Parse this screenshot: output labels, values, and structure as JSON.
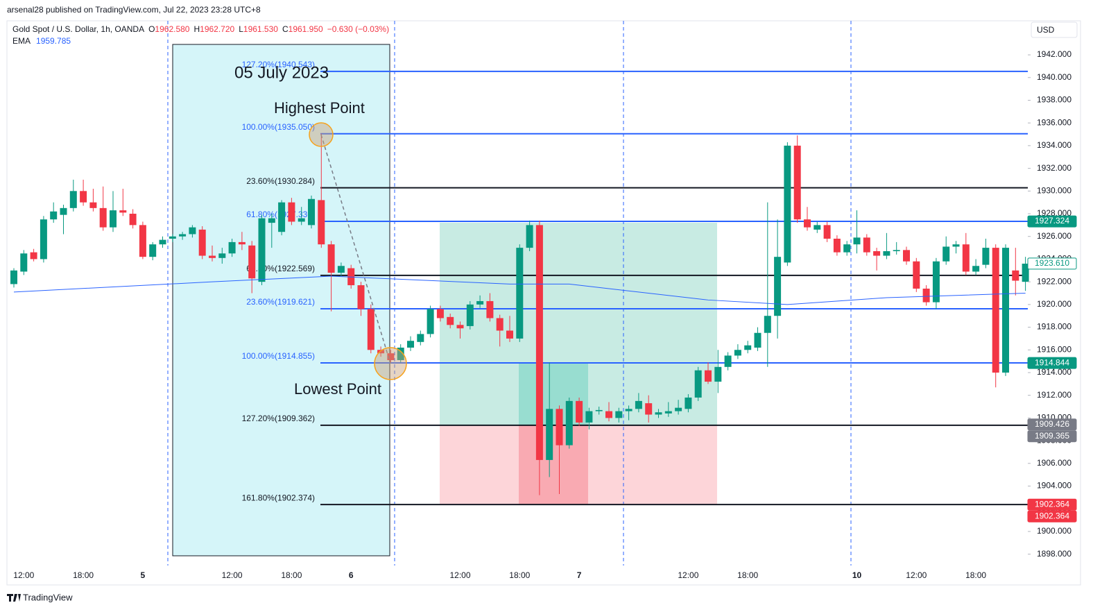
{
  "chart_data": {
    "type": "candlestick",
    "published": "arsenal28 published on TradingView.com, Jul 22, 2023 23:28 UTC+8",
    "symbol": "Gold Spot / U.S. Dollar, 1h, OANDA",
    "ohlc_legend": [
      {
        "label": "O",
        "value": "1962.580"
      },
      {
        "label": "H",
        "value": "1962.720"
      },
      {
        "label": "L",
        "value": "1961.530"
      },
      {
        "label": "C",
        "value": "1961.950"
      }
    ],
    "change": "−0.630 (−0.03%)",
    "ema_legend": {
      "label": "EMA",
      "value": "1959.785"
    },
    "currency": "USD",
    "brand": "TradingView",
    "annotations": [
      "05 July 2023",
      "Highest Point",
      "Lowest Point"
    ],
    "up_color": "#089981",
    "down_color": "#f23645",
    "categories": [
      null,
      "12:00",
      null,
      null,
      null,
      null,
      null,
      "18:00",
      null,
      null,
      null,
      null,
      null,
      "5",
      null,
      null,
      null,
      null,
      null,
      null,
      null,
      null,
      "12:00",
      null,
      null,
      null,
      null,
      null,
      "18:00",
      null,
      null,
      null,
      null,
      null,
      "6",
      null,
      null,
      null,
      null,
      null,
      null,
      null,
      null,
      null,
      null,
      "12:00",
      null,
      null,
      null,
      null,
      null,
      "18:00",
      null,
      null,
      null,
      null,
      null,
      "7",
      null,
      null,
      null,
      null,
      null,
      null,
      null,
      null,
      null,
      null,
      "12:00",
      null,
      null,
      null,
      null,
      null,
      "18:00",
      null,
      null,
      null,
      null,
      null,
      null,
      null,
      null,
      null,
      null,
      "10",
      null,
      null,
      null,
      null,
      null,
      "12:00",
      null,
      null,
      null,
      null,
      null,
      "18:00",
      null,
      null,
      null,
      null,
      null
    ],
    "open": [
      1921.8,
      1922.9,
      1924.6,
      1924.0,
      1927.5,
      1927.9,
      1928.5,
      1930.0,
      1929.0,
      1928.5,
      1926.8,
      1928.3,
      1928.0,
      1927.0,
      1924.2,
      1925.3,
      1925.8,
      1926.0,
      1926.2,
      1926.6,
      1924.3,
      1924.1,
      1924.5,
      1925.5,
      1925.2,
      1922.0,
      1927.2,
      1926.4,
      1929.0,
      1927.3,
      1927.0,
      1929.2,
      1925.3,
      1922.8,
      1923.2,
      1921.7,
      1919.6,
      1916.0,
      1915.7,
      1915.1,
      1916.2,
      1916.7,
      1917.4,
      1919.6,
      1918.9,
      1918.2,
      1918.1,
      1920.0,
      1920.3,
      1918.8,
      1917.7,
      1917.0,
      1925.0,
      1927.0,
      1906.3,
      1910.8,
      1907.6,
      1911.5,
      1909.6,
      1910.6,
      1910.6,
      1910.0,
      1910.6,
      1910.8,
      1911.3,
      1910.3,
      1910.4,
      1910.6,
      1910.8,
      1911.8,
      1914.2,
      1913.2,
      1914.5,
      1915.5,
      1916.0,
      1916.2,
      1917.5,
      1919.0,
      1923.7,
      1934.0,
      1927.5,
      1926.6,
      1927.0,
      1925.8,
      1924.6,
      1925.3,
      1925.9,
      1924.7,
      1924.3,
      1924.7,
      1924.8,
      1923.8,
      1921.4,
      1920.2,
      1923.8,
      1925.1,
      1925.3,
      1922.9,
      1923.5,
      1925.0,
      1914.0,
      1923.0,
      1922.0
    ],
    "high": [
      1923.2,
      1924.8,
      1924.9,
      1927.8,
      1929.0,
      1928.8,
      1931.0,
      1931.0,
      1930.2,
      1930.4,
      1930.0,
      1930.2,
      1928.4,
      1927.3,
      1925.5,
      1926.0,
      1926.2,
      1926.4,
      1927.0,
      1926.9,
      1925.2,
      1925.0,
      1925.8,
      1926.4,
      1925.6,
      1927.9,
      1928.0,
      1929.2,
      1929.4,
      1928.6,
      1929.6,
      1935.05,
      1925.6,
      1923.7,
      1923.5,
      1922.0,
      1920.0,
      1916.3,
      1916.0,
      1916.5,
      1917.2,
      1917.7,
      1919.9,
      1919.9,
      1919.2,
      1918.5,
      1920.3,
      1920.8,
      1921.0,
      1919.1,
      1919.0,
      1925.3,
      1927.4,
      1927.4,
      1914.9,
      1911.1,
      1911.8,
      1911.8,
      1910.9,
      1911.0,
      1911.4,
      1910.9,
      1911.1,
      1912.2,
      1912.0,
      1910.8,
      1911.4,
      1911.6,
      1912.1,
      1914.5,
      1914.9,
      1916.0,
      1915.8,
      1916.5,
      1916.8,
      1918.0,
      1929.0,
      1927.5,
      1934.3,
      1934.9,
      1928.6,
      1927.3,
      1927.3,
      1926.1,
      1925.6,
      1928.3,
      1926.2,
      1925.0,
      1926.3,
      1925.5,
      1925.1,
      1924.1,
      1921.7,
      1924.1,
      1926.0,
      1925.6,
      1926.3,
      1924.0,
      1925.8,
      1925.3,
      1925.3,
      1925.0,
      1924.2
    ],
    "low": [
      1921.5,
      1922.6,
      1923.8,
      1923.7,
      1927.2,
      1926.2,
      1928.2,
      1928.7,
      1928.2,
      1926.5,
      1926.4,
      1927.8,
      1926.7,
      1924.0,
      1923.9,
      1925.0,
      1925.5,
      1925.7,
      1925.9,
      1924.0,
      1923.8,
      1923.6,
      1924.2,
      1924.8,
      1921.0,
      1921.7,
      1925.0,
      1926.1,
      1927.0,
      1927.0,
      1926.7,
      1925.0,
      1919.4,
      1922.5,
      1921.4,
      1919.0,
      1915.7,
      1915.4,
      1914.9,
      1914.9,
      1915.9,
      1916.4,
      1917.1,
      1918.5,
      1917.9,
      1917.0,
      1917.8,
      1919.7,
      1918.5,
      1916.3,
      1916.7,
      1916.7,
      1924.7,
      1903.2,
      1904.8,
      1903.3,
      1907.3,
      1909.3,
      1909.0,
      1910.3,
      1909.7,
      1909.6,
      1909.8,
      1910.5,
      1909.6,
      1910.0,
      1910.1,
      1910.3,
      1910.5,
      1911.5,
      1913.0,
      1912.2,
      1914.2,
      1915.2,
      1915.7,
      1915.9,
      1914.5,
      1917.0,
      1923.4,
      1927.2,
      1926.5,
      1926.3,
      1925.5,
      1924.3,
      1924.3,
      1924.5,
      1924.3,
      1923.0,
      1924.0,
      1924.4,
      1923.5,
      1921.1,
      1919.9,
      1919.6,
      1923.5,
      1924.5,
      1922.6,
      1922.6,
      1923.2,
      1912.7,
      1913.7,
      1920.8,
      1921.2
    ],
    "close": [
      1923.0,
      1924.5,
      1924.0,
      1927.5,
      1928.2,
      1928.5,
      1930.0,
      1929.0,
      1928.5,
      1926.8,
      1928.3,
      1928.1,
      1927.0,
      1924.2,
      1925.3,
      1925.7,
      1926.0,
      1926.2,
      1926.8,
      1924.3,
      1924.1,
      1924.5,
      1925.5,
      1925.3,
      1922.3,
      1927.6,
      1927.6,
      1929.0,
      1927.3,
      1927.6,
      1929.3,
      1925.3,
      1922.8,
      1923.4,
      1921.7,
      1919.6,
      1916.0,
      1915.7,
      1915.1,
      1916.2,
      1916.8,
      1917.4,
      1919.6,
      1918.8,
      1918.2,
      1917.9,
      1920.0,
      1920.3,
      1918.8,
      1917.7,
      1917.0,
      1925.0,
      1927.0,
      1906.3,
      1910.8,
      1907.6,
      1911.5,
      1909.6,
      1910.6,
      1910.7,
      1910.0,
      1910.6,
      1910.8,
      1911.5,
      1910.3,
      1910.5,
      1910.6,
      1910.9,
      1911.8,
      1914.2,
      1913.2,
      1914.5,
      1915.5,
      1916.0,
      1916.4,
      1917.5,
      1919.0,
      1924.2,
      1934.0,
      1927.5,
      1926.8,
      1927.0,
      1925.8,
      1924.6,
      1925.3,
      1925.9,
      1924.6,
      1924.3,
      1924.7,
      1924.8,
      1923.8,
      1921.4,
      1920.2,
      1923.8,
      1925.1,
      1925.3,
      1922.9,
      1923.4,
      1925.0,
      1914.0,
      1925.0,
      1922.1,
      1923.6
    ],
    "ema": {
      "color": "#2962ff",
      "x": [
        0,
        20,
        32,
        50,
        56,
        70,
        78,
        88,
        102
      ],
      "values": [
        1921.1,
        1922.0,
        1922.5,
        1921.8,
        1921.8,
        1920.4,
        1920.0,
        1920.6,
        1921.0
      ]
    },
    "levels": [
      {
        "label": "127.20%(1940.543)",
        "value": 1940.543,
        "color": "#2962ff"
      },
      {
        "label": "100.00%(1935.050)",
        "value": 1935.05,
        "color": "#2962ff"
      },
      {
        "label": "23.60%(1930.284)",
        "value": 1930.284,
        "color": "#131722"
      },
      {
        "label": "61.80%(1927.330)",
        "value": 1927.33,
        "color": "#2962ff"
      },
      {
        "label": "61.80%(1922.569)",
        "value": 1922.569,
        "color": "#131722"
      },
      {
        "label": "23.60%(1919.621)",
        "value": 1919.621,
        "color": "#2962ff"
      },
      {
        "label": "100.00%(1914.855)",
        "value": 1914.855,
        "color": "#2962ff"
      },
      {
        "label": "127.20%(1909.362)",
        "value": 1909.362,
        "color": "#131722"
      },
      {
        "label": "161.80%(1902.374)",
        "value": 1902.374,
        "color": "#131722"
      }
    ],
    "price_badges": [
      {
        "value": 1927.324,
        "label": "1927.324",
        "color": "#089981"
      },
      {
        "value": 1923.61,
        "label": "1923.610",
        "color": "#ffffff"
      },
      {
        "value": 1914.844,
        "label": "1914.844",
        "color": "#089981"
      },
      {
        "value": 1909.426,
        "label": "1909.426",
        "color": "#787b86"
      },
      {
        "value": 1909.365,
        "label": "1909.365",
        "color": "#787b86"
      },
      {
        "value": 1902.364,
        "label": "1902.364",
        "color": "#f23645"
      },
      {
        "value": 1902.364,
        "label": "1902.364",
        "color": "#f23645"
      }
    ],
    "ylim": [
      1897,
      1945
    ],
    "yticks": [
      {
        "value": 1898,
        "label": "1898.000"
      },
      {
        "value": 1900,
        "label": "1900.000"
      },
      {
        "value": 1902,
        "label": "1902.000"
      },
      {
        "value": 1904,
        "label": "1904.000"
      },
      {
        "value": 1906,
        "label": "1906.000"
      },
      {
        "value": 1908,
        "label": "1908.000"
      },
      {
        "value": 1910,
        "label": "1910.000"
      },
      {
        "value": 1912,
        "label": "1912.000"
      },
      {
        "value": 1914,
        "label": "1914.000"
      },
      {
        "value": 1916,
        "label": "1916.000"
      },
      {
        "value": 1918,
        "label": "1918.000"
      },
      {
        "value": 1920,
        "label": "1920.000"
      },
      {
        "value": 1922,
        "label": "1922.000"
      },
      {
        "value": 1924,
        "label": "1924.000"
      },
      {
        "value": 1926,
        "label": "1926.000"
      },
      {
        "value": 1928,
        "label": "1928.000"
      },
      {
        "value": 1930,
        "label": "1930.000"
      },
      {
        "value": 1932,
        "label": "1932.000"
      },
      {
        "value": 1934,
        "label": "1934.000"
      },
      {
        "value": 1936,
        "label": "1936.000"
      },
      {
        "value": 1938,
        "label": "1938.000"
      },
      {
        "value": 1940,
        "label": "1940.000"
      },
      {
        "value": 1942,
        "label": "1942.000"
      }
    ]
  }
}
